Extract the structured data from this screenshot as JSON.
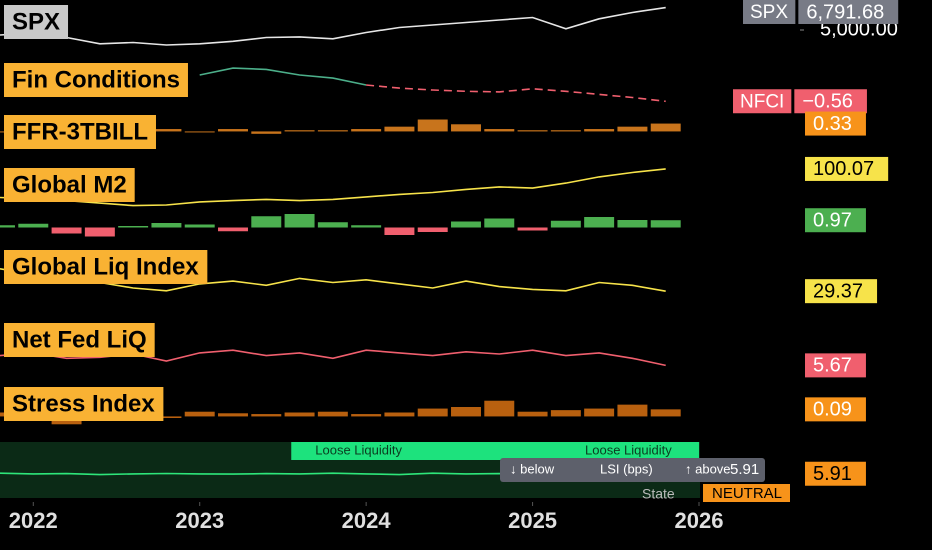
{
  "chart_data": [
    {
      "type": "line",
      "title": "SPX",
      "title_color": "#c9c9c9",
      "x": [
        2021.8,
        2022.0,
        2022.2,
        2022.4,
        2022.6,
        2022.8,
        2023.0,
        2023.2,
        2023.4,
        2023.6,
        2023.8,
        2024.0,
        2024.2,
        2024.4,
        2024.6,
        2024.8,
        2025.0,
        2025.2,
        2025.4,
        2025.6,
        2025.8
      ],
      "values": [
        4600,
        4770,
        4400,
        3900,
        4000,
        3800,
        3900,
        4100,
        4400,
        4450,
        4300,
        4800,
        5200,
        5400,
        5600,
        5800,
        6000,
        5100,
        5900,
        6400,
        6791.68
      ],
      "color": "#e6e6e6",
      "xlim": [
        2021.8,
        2027.4
      ],
      "ylim": [
        3000,
        7000
      ],
      "yticks": [
        {
          "value": 5000,
          "label": "5,000.00"
        }
      ],
      "tag_name": "SPX",
      "last_value": {
        "value": 6791.68,
        "label": "6,791.68"
      },
      "tag_color": "#787b86",
      "tag_text_color": "#ffffff"
    },
    {
      "type": "line",
      "title": "Fin Conditions",
      "title_color": "#f9b233",
      "x": [
        2021.8,
        2022.0,
        2022.2,
        2022.4,
        2022.6,
        2022.8,
        2023.0,
        2023.2,
        2023.4,
        2023.6,
        2023.8,
        2024.0,
        2024.2,
        2024.4,
        2024.6,
        2024.8,
        2025.0,
        2025.2,
        2025.4,
        2025.6,
        2025.8
      ],
      "series": [
        {
          "color": "#4caf8a",
          "values": [
            null,
            null,
            null,
            null,
            null,
            null,
            -0.14,
            -0.03,
            -0.05,
            -0.14,
            -0.19,
            -0.3,
            null,
            null,
            null,
            null,
            null,
            null,
            null,
            null,
            null
          ]
        },
        {
          "color": "#f05f6e",
          "dashed": true,
          "values": [
            null,
            null,
            null,
            null,
            null,
            null,
            null,
            null,
            null,
            null,
            null,
            -0.3,
            -0.35,
            -0.38,
            -0.4,
            -0.41,
            -0.36,
            -0.4,
            -0.45,
            -0.5,
            -0.56
          ]
        }
      ],
      "xlim": [
        2021.8,
        2027.4
      ],
      "ylim": [
        -0.7,
        0.1
      ],
      "tag_name": "NFCI",
      "last_value": {
        "value": -0.56,
        "label": "−0.56"
      },
      "tag_color": "#f05f6e",
      "tag_text_color": "#ffffff"
    },
    {
      "type": "bar",
      "title": "FFR-3TBILL",
      "title_color": "#f9b233",
      "x": [
        2021.8,
        2022.0,
        2022.2,
        2022.4,
        2022.6,
        2022.8,
        2023.0,
        2023.2,
        2023.4,
        2023.6,
        2023.8,
        2024.0,
        2024.2,
        2024.4,
        2024.6,
        2024.8,
        2025.0,
        2025.2,
        2025.4,
        2025.6,
        2025.8
      ],
      "values": [
        0,
        -0.1,
        -0.3,
        -0.2,
        -0.1,
        0.1,
        0,
        0.1,
        -0.1,
        0.05,
        0.05,
        0.1,
        0.2,
        0.5,
        0.3,
        0.1,
        0.05,
        0.05,
        0.1,
        0.2,
        0.33
      ],
      "color": "#c8741c",
      "xlim": [
        2021.8,
        2027.4
      ],
      "ylim": [
        -1.2,
        0.9
      ],
      "last_value": 0.33,
      "tag_color": "#f7931a",
      "tag_text_color": "#ffffff"
    },
    {
      "type": "line",
      "title": "Global M2",
      "title_color": "#f9b233",
      "x": [
        2021.8,
        2022.0,
        2022.2,
        2022.4,
        2022.6,
        2022.8,
        2023.0,
        2023.2,
        2023.4,
        2023.6,
        2023.8,
        2024.0,
        2024.2,
        2024.4,
        2024.6,
        2024.8,
        2025.0,
        2025.2,
        2025.4,
        2025.6,
        2025.8
      ],
      "values": [
        95.5,
        95.3,
        95.0,
        94.6,
        94.2,
        94.3,
        94.8,
        95.0,
        95.2,
        95.0,
        95.2,
        95.6,
        96.0,
        96.3,
        96.8,
        97.2,
        97.0,
        97.8,
        98.8,
        99.5,
        100.07
      ],
      "color": "#f7e34a",
      "xlim": [
        2021.8,
        2027.4
      ],
      "ylim": [
        93.5,
        101.5
      ],
      "last_value": 100.07,
      "tag_color": "#f7e34a",
      "tag_text_color": "#000000"
    },
    {
      "type": "bar",
      "x": [
        2021.8,
        2022.0,
        2022.2,
        2022.4,
        2022.6,
        2022.8,
        2023.0,
        2023.2,
        2023.4,
        2023.6,
        2023.8,
        2024.0,
        2024.2,
        2024.4,
        2024.6,
        2024.8,
        2025.0,
        2025.2,
        2025.4,
        2025.6,
        2025.8
      ],
      "values": [
        0.3,
        0.5,
        -0.8,
        -1.2,
        0.2,
        0.6,
        0.4,
        -0.5,
        1.5,
        1.8,
        0.7,
        0.3,
        -1.0,
        -0.6,
        0.8,
        1.2,
        -0.4,
        0.9,
        1.4,
        1.0,
        0.97
      ],
      "color_up": "#4caf50",
      "color_down": "#f05f6e",
      "xlim": [
        2021.8,
        2027.4
      ],
      "ylim": [
        -3,
        3
      ],
      "last_value": 0.97,
      "tag_color": "#4caf50",
      "tag_text_color": "#ffffff"
    },
    {
      "type": "line",
      "title": "Global Liq Index",
      "title_color": "#f9b233",
      "x": [
        2021.8,
        2022.0,
        2022.2,
        2022.4,
        2022.6,
        2022.8,
        2023.0,
        2023.2,
        2023.4,
        2023.6,
        2023.8,
        2024.0,
        2024.2,
        2024.4,
        2024.6,
        2024.8,
        2025.0,
        2025.2,
        2025.4,
        2025.6,
        2025.8
      ],
      "values": [
        31.0,
        30.6,
        30.2,
        30.0,
        29.6,
        29.4,
        29.9,
        30.1,
        29.8,
        30.3,
        30.0,
        30.2,
        29.9,
        29.6,
        30.1,
        29.7,
        29.5,
        29.4,
        30.0,
        29.8,
        29.37
      ],
      "color": "#f7e34a",
      "xlim": [
        2021.8,
        2027.4
      ],
      "ylim": [
        28,
        32
      ],
      "last_value": 29.37,
      "tag_color": "#f7e34a",
      "tag_text_color": "#000000"
    },
    {
      "type": "line",
      "title": "Net Fed LiQ",
      "title_color": "#f9b233",
      "x": [
        2021.8,
        2022.0,
        2022.2,
        2022.4,
        2022.6,
        2022.8,
        2023.0,
        2023.2,
        2023.4,
        2023.6,
        2023.8,
        2024.0,
        2024.2,
        2024.4,
        2024.6,
        2024.8,
        2025.0,
        2025.2,
        2025.4,
        2025.6,
        2025.8
      ],
      "values": [
        5.85,
        5.9,
        5.8,
        5.82,
        5.88,
        5.75,
        5.9,
        5.95,
        5.85,
        5.9,
        5.8,
        5.95,
        5.9,
        5.85,
        5.92,
        5.88,
        5.95,
        5.85,
        5.9,
        5.8,
        5.67
      ],
      "color": "#f05f6e",
      "xlim": [
        2021.8,
        2027.4
      ],
      "ylim": [
        5.4,
        6.6
      ],
      "last_value": 5.67,
      "tag_color": "#f05f6e",
      "tag_text_color": "#ffffff"
    },
    {
      "type": "bar",
      "title": "Stress Index",
      "title_color": "#f9b233",
      "x": [
        2021.8,
        2022.0,
        2022.2,
        2022.4,
        2022.6,
        2022.8,
        2023.0,
        2023.2,
        2023.4,
        2023.6,
        2023.8,
        2024.0,
        2024.2,
        2024.4,
        2024.6,
        2024.8,
        2025.0,
        2025.2,
        2025.4,
        2025.6,
        2025.8
      ],
      "values": [
        0.05,
        -0.05,
        -0.1,
        0.08,
        0.05,
        -0.02,
        0.06,
        0.04,
        0.03,
        0.05,
        0.06,
        0.03,
        0.05,
        0.1,
        0.12,
        0.2,
        0.06,
        0.08,
        0.1,
        0.15,
        0.09
      ],
      "color": "#b8600f",
      "xlim": [
        2021.8,
        2027.4
      ],
      "ylim": [
        -0.3,
        0.4
      ],
      "last_value": 0.09,
      "tag_color": "#f7931a",
      "tag_text_color": "#ffffff"
    },
    {
      "type": "line",
      "x": [
        2021.8,
        2022.0,
        2022.2,
        2022.4,
        2022.6,
        2022.8,
        2023.0,
        2023.2,
        2023.4,
        2023.6,
        2023.8,
        2024.0,
        2024.2,
        2024.4,
        2024.6,
        2024.8,
        2025.0,
        2025.2,
        2025.4,
        2025.6,
        2025.8
      ],
      "values": [
        5.95,
        5.9,
        5.92,
        5.85,
        5.9,
        5.93,
        5.9,
        5.88,
        5.92,
        5.9,
        5.95,
        5.9,
        5.85,
        5.95,
        5.9,
        5.92,
        5.88,
        5.9,
        5.93,
        5.9,
        5.91
      ],
      "color": "#2ee67a",
      "xlim": [
        2021.8,
        2027.4
      ],
      "ylim": [
        4,
        8
      ],
      "xticks": [
        2022,
        2023,
        2024,
        2025,
        2026
      ],
      "signal": "Loose Liquidity",
      "signal_span": [
        2023.55,
        2026.0
      ],
      "legend_items": [
        "↓ below",
        "LSI (bps)",
        "↑ above"
      ],
      "state_label": "State",
      "state": "NEUTRAL",
      "last_value": 5.91,
      "tag_color": "#f7931a",
      "tag_text_color": "#000000"
    }
  ]
}
